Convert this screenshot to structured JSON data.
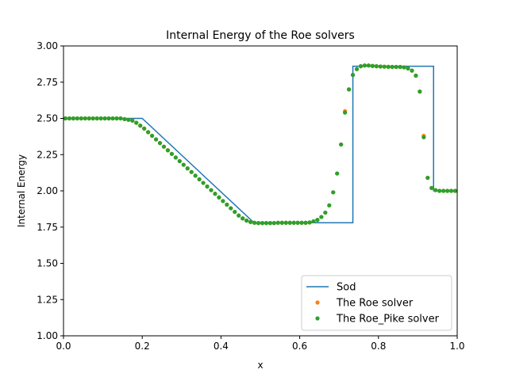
{
  "chart_data": {
    "type": "line",
    "title": "Internal Energy of the Roe solvers",
    "xlabel": "x",
    "ylabel": "Internal Energy",
    "xlim": [
      0.0,
      1.0
    ],
    "ylim": [
      1.0,
      3.0
    ],
    "xticks": [
      "0.0",
      "0.2",
      "0.4",
      "0.6",
      "0.8",
      "1.0"
    ],
    "yticks": [
      "1.00",
      "1.25",
      "1.50",
      "1.75",
      "2.00",
      "2.25",
      "2.50",
      "2.75",
      "3.00"
    ],
    "grid": false,
    "legend_position": "lower right",
    "series": [
      {
        "name": "Sod",
        "kind": "line",
        "color": "#1f77b4",
        "x": [
          0.0,
          0.2,
          0.484,
          0.735,
          0.735,
          0.94,
          0.94,
          1.0
        ],
        "y": [
          2.5,
          2.5,
          1.78,
          1.78,
          2.86,
          2.86,
          2.0,
          2.0
        ]
      },
      {
        "name": "The Roe solver",
        "kind": "points",
        "color": "#ff7f0e",
        "x": [
          0.005,
          0.015,
          0.025,
          0.035,
          0.045,
          0.055,
          0.065,
          0.075,
          0.085,
          0.095,
          0.105,
          0.115,
          0.125,
          0.135,
          0.145,
          0.155,
          0.165,
          0.175,
          0.185,
          0.195,
          0.205,
          0.215,
          0.225,
          0.235,
          0.245,
          0.255,
          0.265,
          0.275,
          0.285,
          0.295,
          0.305,
          0.315,
          0.325,
          0.335,
          0.345,
          0.355,
          0.365,
          0.375,
          0.385,
          0.395,
          0.405,
          0.415,
          0.425,
          0.435,
          0.445,
          0.455,
          0.465,
          0.475,
          0.485,
          0.495,
          0.505,
          0.515,
          0.525,
          0.535,
          0.545,
          0.555,
          0.565,
          0.575,
          0.585,
          0.595,
          0.605,
          0.615,
          0.625,
          0.635,
          0.645,
          0.655,
          0.665,
          0.675,
          0.685,
          0.695,
          0.705,
          0.715,
          0.725,
          0.735,
          0.745,
          0.755,
          0.765,
          0.775,
          0.785,
          0.795,
          0.805,
          0.815,
          0.825,
          0.835,
          0.845,
          0.855,
          0.865,
          0.875,
          0.885,
          0.895,
          0.905,
          0.915,
          0.925,
          0.935,
          0.945,
          0.955,
          0.965,
          0.975,
          0.985,
          0.995
        ],
        "y": [
          2.5,
          2.5,
          2.5,
          2.5,
          2.5,
          2.5,
          2.5,
          2.5,
          2.5,
          2.5,
          2.5,
          2.5,
          2.5,
          2.5,
          2.5,
          2.495,
          2.49,
          2.485,
          2.47,
          2.45,
          2.43,
          2.405,
          2.38,
          2.355,
          2.33,
          2.305,
          2.28,
          2.255,
          2.23,
          2.205,
          2.18,
          2.155,
          2.13,
          2.105,
          2.08,
          2.055,
          2.03,
          2.005,
          1.98,
          1.955,
          1.93,
          1.905,
          1.88,
          1.855,
          1.83,
          1.81,
          1.795,
          1.785,
          1.78,
          1.778,
          1.778,
          1.778,
          1.778,
          1.778,
          1.78,
          1.78,
          1.78,
          1.78,
          1.78,
          1.78,
          1.78,
          1.78,
          1.782,
          1.79,
          1.8,
          1.82,
          1.85,
          1.9,
          1.99,
          2.12,
          2.32,
          2.55,
          2.7,
          2.8,
          2.84,
          2.86,
          2.865,
          2.865,
          2.862,
          2.86,
          2.858,
          2.857,
          2.856,
          2.855,
          2.855,
          2.855,
          2.852,
          2.845,
          2.83,
          2.795,
          2.685,
          2.38,
          2.09,
          2.02,
          2.005,
          2.0,
          2.0,
          2.0,
          2.0,
          2.0
        ]
      },
      {
        "name": "The Roe_Pike solver",
        "kind": "points",
        "color": "#2ca02c",
        "x": [
          0.005,
          0.015,
          0.025,
          0.035,
          0.045,
          0.055,
          0.065,
          0.075,
          0.085,
          0.095,
          0.105,
          0.115,
          0.125,
          0.135,
          0.145,
          0.155,
          0.165,
          0.175,
          0.185,
          0.195,
          0.205,
          0.215,
          0.225,
          0.235,
          0.245,
          0.255,
          0.265,
          0.275,
          0.285,
          0.295,
          0.305,
          0.315,
          0.325,
          0.335,
          0.345,
          0.355,
          0.365,
          0.375,
          0.385,
          0.395,
          0.405,
          0.415,
          0.425,
          0.435,
          0.445,
          0.455,
          0.465,
          0.475,
          0.485,
          0.495,
          0.505,
          0.515,
          0.525,
          0.535,
          0.545,
          0.555,
          0.565,
          0.575,
          0.585,
          0.595,
          0.605,
          0.615,
          0.625,
          0.635,
          0.645,
          0.655,
          0.665,
          0.675,
          0.685,
          0.695,
          0.705,
          0.715,
          0.725,
          0.735,
          0.745,
          0.755,
          0.765,
          0.775,
          0.785,
          0.795,
          0.805,
          0.815,
          0.825,
          0.835,
          0.845,
          0.855,
          0.865,
          0.875,
          0.885,
          0.895,
          0.905,
          0.915,
          0.925,
          0.935,
          0.945,
          0.955,
          0.965,
          0.975,
          0.985,
          0.995
        ],
        "y": [
          2.5,
          2.5,
          2.5,
          2.5,
          2.5,
          2.5,
          2.5,
          2.5,
          2.5,
          2.5,
          2.5,
          2.5,
          2.5,
          2.5,
          2.5,
          2.495,
          2.49,
          2.485,
          2.47,
          2.45,
          2.43,
          2.405,
          2.38,
          2.355,
          2.33,
          2.305,
          2.28,
          2.255,
          2.23,
          2.205,
          2.18,
          2.155,
          2.13,
          2.105,
          2.08,
          2.055,
          2.03,
          2.005,
          1.98,
          1.955,
          1.93,
          1.905,
          1.88,
          1.855,
          1.83,
          1.81,
          1.795,
          1.785,
          1.78,
          1.778,
          1.778,
          1.778,
          1.778,
          1.778,
          1.78,
          1.78,
          1.78,
          1.78,
          1.78,
          1.78,
          1.78,
          1.78,
          1.782,
          1.79,
          1.8,
          1.82,
          1.85,
          1.9,
          1.99,
          2.12,
          2.32,
          2.54,
          2.7,
          2.8,
          2.84,
          2.86,
          2.865,
          2.865,
          2.862,
          2.86,
          2.858,
          2.857,
          2.856,
          2.855,
          2.855,
          2.855,
          2.852,
          2.845,
          2.83,
          2.795,
          2.685,
          2.37,
          2.09,
          2.02,
          2.005,
          2.0,
          2.0,
          2.0,
          2.0,
          2.0
        ]
      }
    ]
  }
}
